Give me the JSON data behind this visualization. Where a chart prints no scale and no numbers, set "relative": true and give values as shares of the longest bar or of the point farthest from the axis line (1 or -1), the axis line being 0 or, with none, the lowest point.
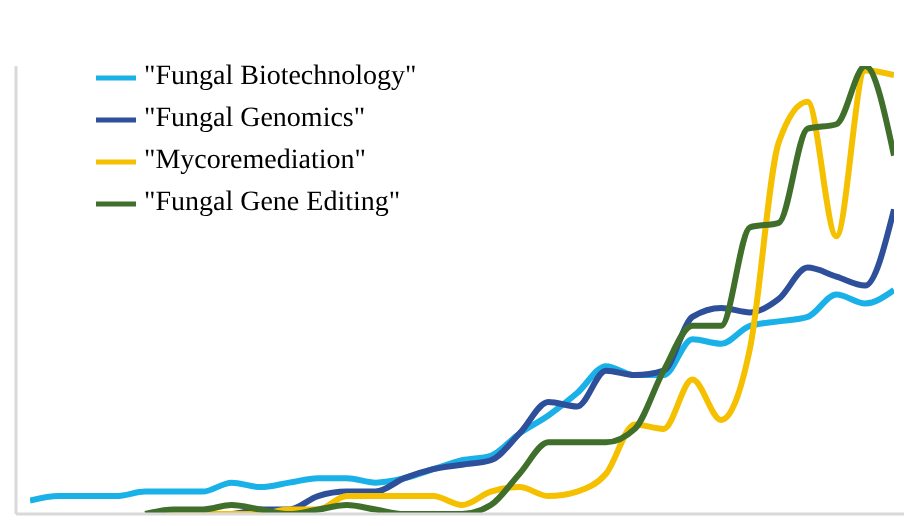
{
  "chart_data": {
    "type": "line",
    "relative": true,
    "legend": "top left",
    "marker": "none",
    "line_style": "solid",
    "categories": [
      null,
      null,
      null,
      null,
      null,
      null,
      null,
      null,
      null,
      null,
      null,
      null,
      null,
      null,
      null,
      null,
      null,
      null,
      null,
      null,
      null,
      null,
      null,
      null,
      null,
      null,
      null,
      null,
      null,
      null,
      null
    ],
    "series": [
      {
        "name": "\"Fungal Biotechnology\"",
        "color": "#1ab0e8",
        "values": [
          0.03,
          0.04,
          0.04,
          0.04,
          0.05,
          0.05,
          0.05,
          0.07,
          0.06,
          0.07,
          0.08,
          0.08,
          0.07,
          0.08,
          0.1,
          0.12,
          0.13,
          0.18,
          0.22,
          0.27,
          0.33,
          0.31,
          0.31,
          0.39,
          0.38,
          0.42,
          0.43,
          0.44,
          0.49,
          0.47,
          0.5
        ]
      },
      {
        "name": "\"Fungal Genomics\"",
        "color": "#2e4f9a",
        "values": [
          null,
          null,
          null,
          null,
          null,
          null,
          0.0,
          0.0,
          0.01,
          0.01,
          0.04,
          0.05,
          0.05,
          0.08,
          0.1,
          0.11,
          0.12,
          0.18,
          0.25,
          0.24,
          0.32,
          0.31,
          0.32,
          0.44,
          0.46,
          0.45,
          0.48,
          0.55,
          0.53,
          0.51,
          0.68
        ]
      },
      {
        "name": "\"Mycoremediation\"",
        "color": "#f5c000",
        "values": [
          null,
          null,
          null,
          null,
          0.0,
          0.0,
          0.0,
          0.0,
          0.0,
          0.01,
          0.01,
          0.04,
          0.04,
          0.04,
          0.04,
          0.02,
          0.05,
          0.06,
          0.04,
          0.05,
          0.09,
          0.2,
          0.19,
          0.3,
          0.21,
          0.37,
          0.83,
          0.92,
          0.62,
          0.99,
          0.98
        ]
      },
      {
        "name": "\"Fungal Gene Editing\"",
        "color": "#3f6f2a",
        "values": [
          null,
          null,
          null,
          null,
          0.0,
          0.01,
          0.01,
          0.02,
          0.01,
          0.0,
          0.01,
          0.02,
          0.01,
          0.0,
          0.0,
          0.0,
          0.02,
          0.09,
          0.16,
          0.16,
          0.16,
          0.19,
          0.32,
          0.42,
          0.42,
          0.64,
          0.65,
          0.86,
          0.87,
          1,
          0.8
        ]
      }
    ]
  }
}
